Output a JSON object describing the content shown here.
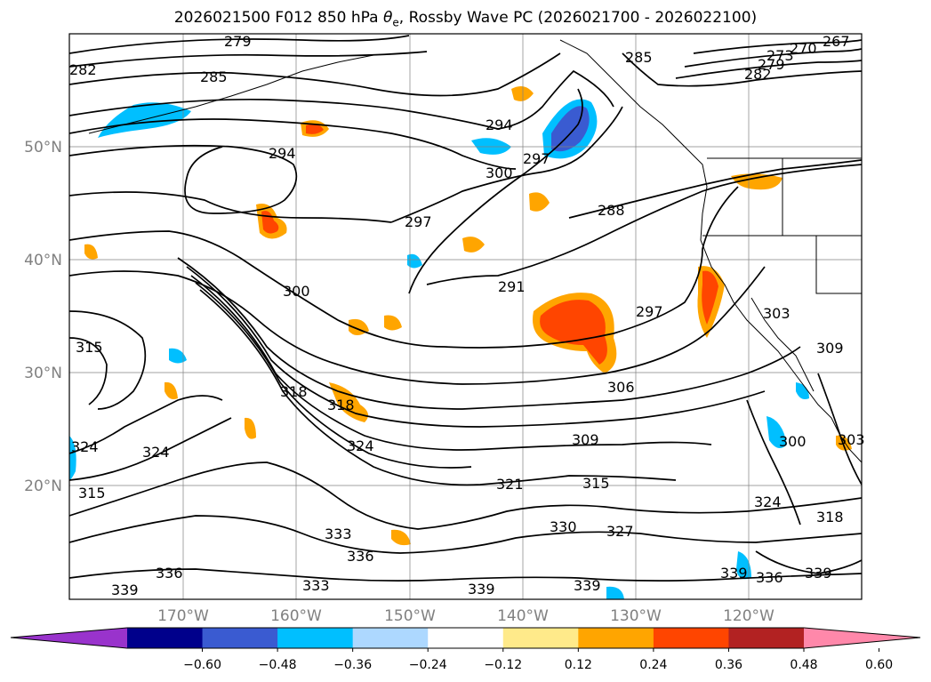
{
  "title": {
    "prefix": "2026021500 F012 850 hPa ",
    "theta_symbol": "θ",
    "theta_sub": "e",
    "suffix": ", Rossby Wave PC (2026021700 - 2026022100)"
  },
  "map": {
    "lat_labels": [
      "50°N",
      "40°N",
      "30°N",
      "20°N"
    ],
    "lon_labels": [
      "170°W",
      "160°W",
      "150°W",
      "140°W",
      "130°W",
      "120°W"
    ],
    "contour_labels": [
      "279",
      "282",
      "285",
      "285",
      "267",
      "270",
      "273",
      "279",
      "282",
      "294",
      "294",
      "297",
      "300",
      "297",
      "288",
      "291",
      "300",
      "297",
      "306",
      "315",
      "315",
      "318",
      "318",
      "324",
      "324",
      "324",
      "309",
      "321",
      "315",
      "330",
      "327",
      "333",
      "336",
      "336",
      "339",
      "333",
      "339",
      "339",
      "339",
      "336",
      "339",
      "303",
      "309",
      "300",
      "303",
      "324",
      "318"
    ]
  },
  "colorbar": {
    "colors": [
      "#9933cc",
      "#00008b",
      "#3a5bd1",
      "#00bfff",
      "#add8ff",
      "#ffffff",
      "#ffea8a",
      "#ffa500",
      "#ff4500",
      "#b22222",
      "#ff88aa"
    ],
    "ticks": [
      "−0.60",
      "−0.48",
      "−0.36",
      "−0.24",
      "−0.12",
      "0.12",
      "0.24",
      "0.36",
      "0.48",
      "0.60"
    ]
  },
  "colors": {
    "coast": "#000000",
    "grid": "#808080",
    "axis_label": "#808080"
  }
}
